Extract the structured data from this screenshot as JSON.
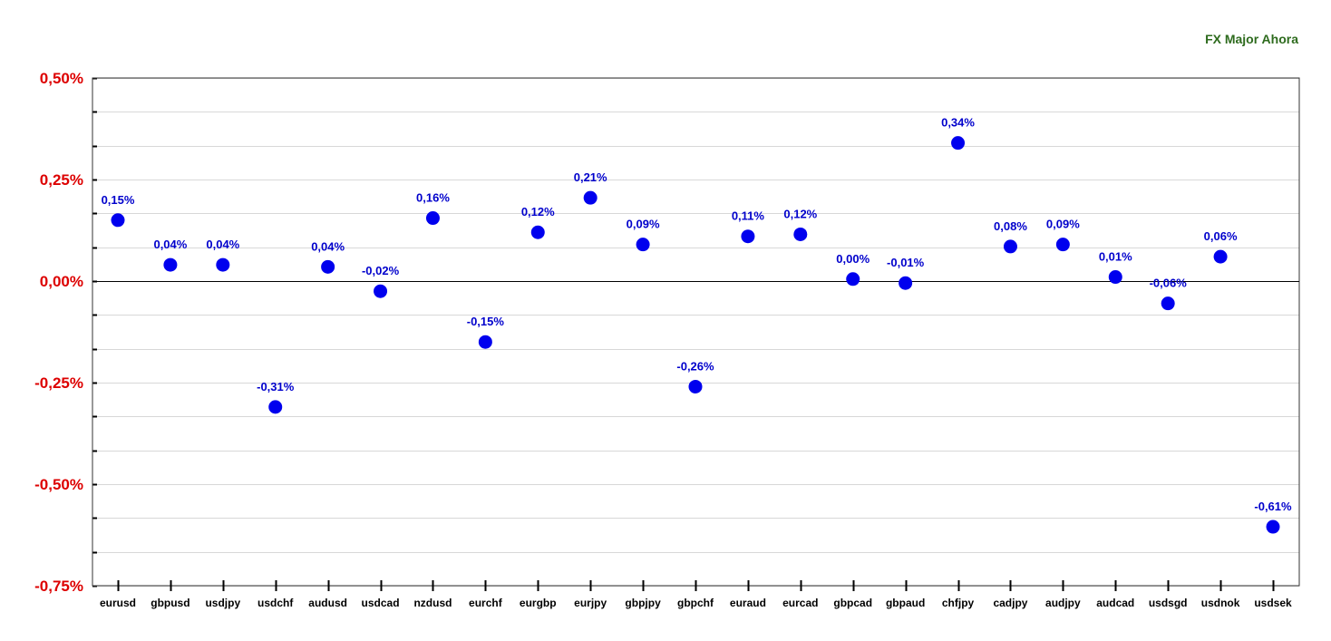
{
  "chart_data": {
    "type": "scatter",
    "title": "FX Major Ahora",
    "categories": [
      "eurusd",
      "gbpusd",
      "usdjpy",
      "usdchf",
      "audusd",
      "usdcad",
      "nzdusd",
      "eurchf",
      "eurgbp",
      "eurjpy",
      "gbpjpy",
      "gbpchf",
      "euraud",
      "eurcad",
      "gbpcad",
      "gbpaud",
      "chfjpy",
      "cadjpy",
      "audjpy",
      "audcad",
      "usdsgd",
      "usdnok",
      "usdsek"
    ],
    "values": [
      0.15,
      0.04,
      0.04,
      -0.31,
      0.035,
      -0.025,
      0.155,
      -0.15,
      0.12,
      0.205,
      0.09,
      -0.26,
      0.11,
      0.115,
      0.005,
      -0.005,
      0.34,
      0.085,
      0.09,
      0.01,
      -0.055,
      0.06,
      -0.605
    ],
    "data_labels": [
      "0,15%",
      "0,04%",
      "0,04%",
      "-0,31%",
      "0,04%",
      "-0,02%",
      "0,16%",
      "-0,15%",
      "0,12%",
      "0,21%",
      "0,09%",
      "-0,26%",
      "0,11%",
      "0,12%",
      "0,00%",
      "-0,01%",
      "0,34%",
      "0,08%",
      "0,09%",
      "0,01%",
      "-0,06%",
      "0,06%",
      "-0,61%"
    ],
    "y_ticks": [
      0.5,
      0.25,
      0,
      -0.25,
      -0.5,
      -0.75
    ],
    "y_tick_labels": [
      "0,50%",
      "0,25%",
      "0,00%",
      "-0,25%",
      "-0,50%",
      "-0,75%"
    ],
    "ylim": [
      -0.75,
      0.5
    ],
    "xlabel": "",
    "ylabel": "",
    "grid": true,
    "legend": "none",
    "colors": {
      "points": "#0000ee",
      "data_labels": "#0000cc",
      "y_tick_labels": "#dd0000",
      "title": "#2e6b1e",
      "grid": "#d8d8d8",
      "zero_line": "#000000"
    }
  }
}
